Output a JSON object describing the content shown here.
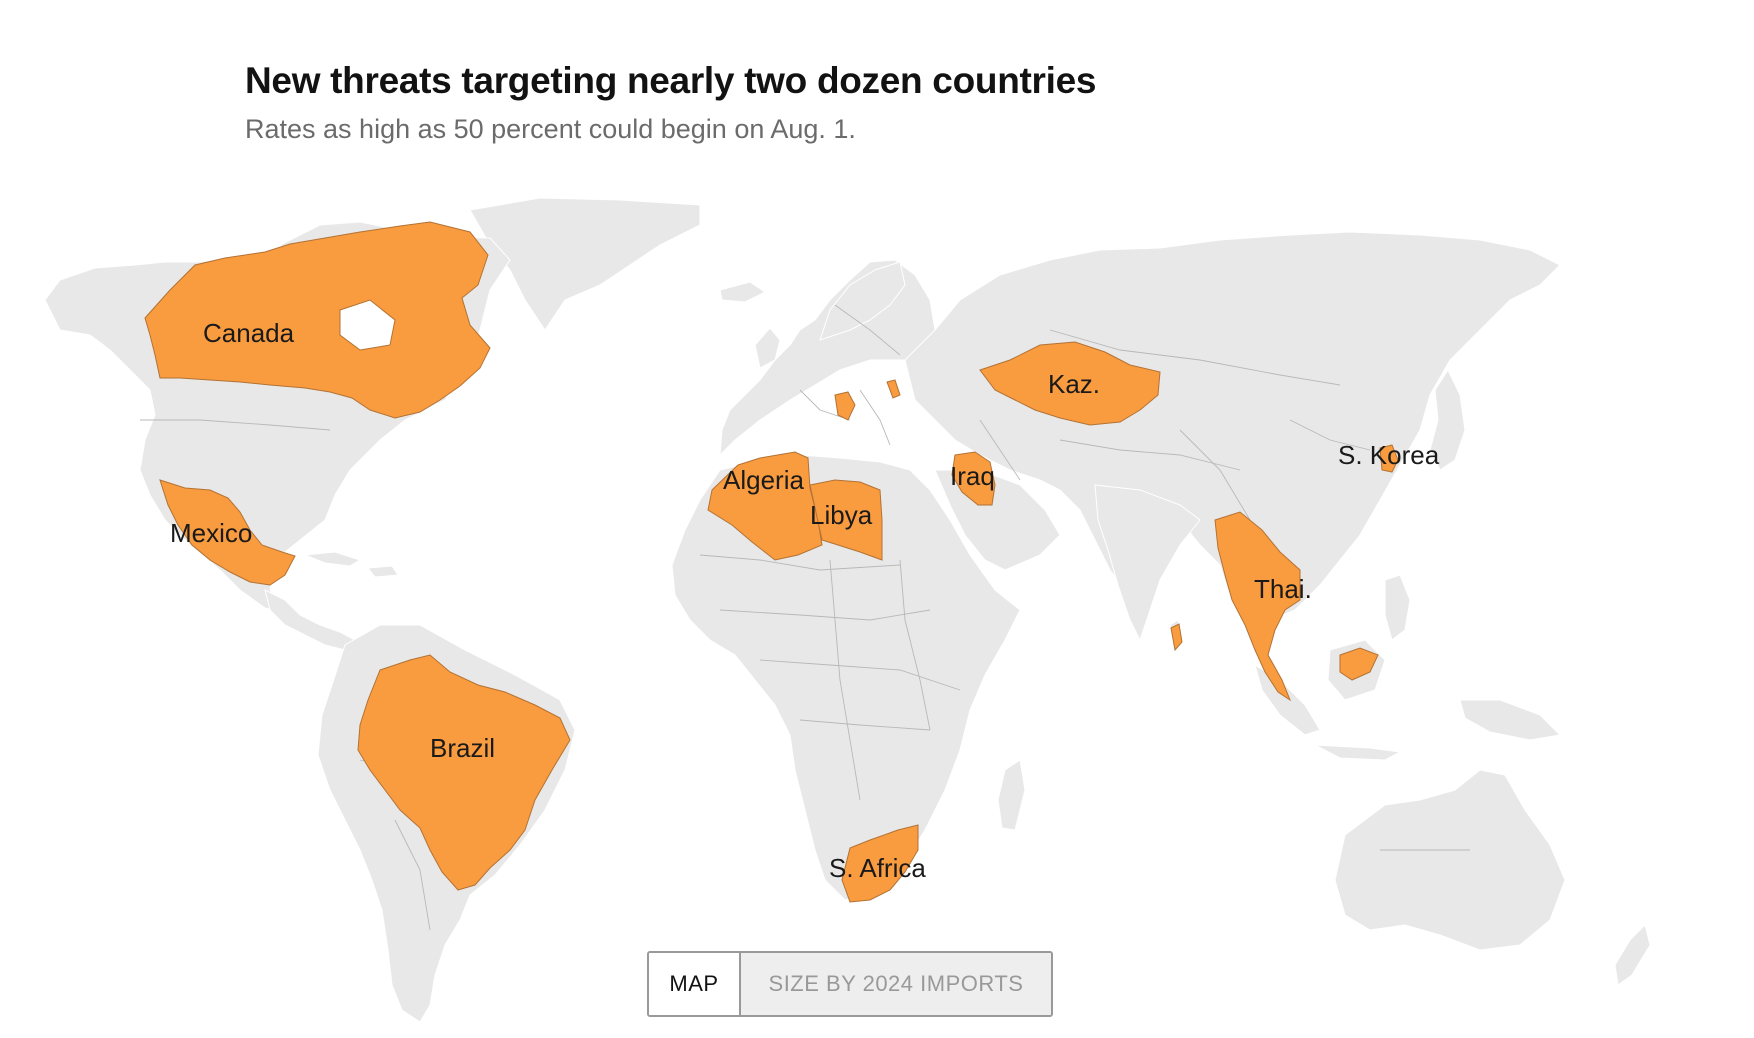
{
  "header": {
    "title": "New threats targeting nearly two dozen countries",
    "subtitle": "Rates as high as 50 percent could begin on Aug. 1."
  },
  "colors": {
    "highlight": "#f99b3f",
    "land": "#e8e8e8",
    "borders": "#b8b8b8",
    "background": "#ffffff"
  },
  "map": {
    "labels": {
      "canada": "Canada",
      "mexico": "Mexico",
      "brazil": "Brazil",
      "algeria": "Algeria",
      "libya": "Libya",
      "iraq": "Iraq",
      "kaz": "Kaz.",
      "s_korea": "S. Korea",
      "thai": "Thai.",
      "s_africa": "S. Africa"
    }
  },
  "toggle": {
    "options": [
      "MAP",
      "SIZE BY 2024 IMPORTS"
    ],
    "selected": "MAP"
  }
}
